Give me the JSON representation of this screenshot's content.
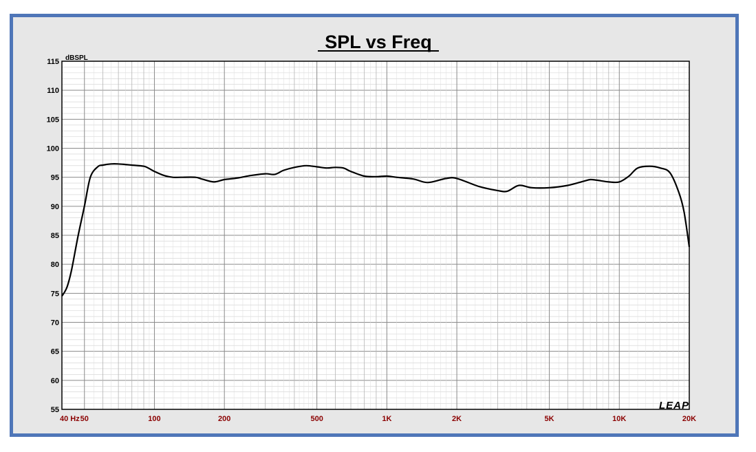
{
  "chart_data": {
    "type": "line",
    "title": "SPL vs Freq",
    "ylabel": "dBSPL",
    "xlabel": "",
    "x_scale": "log",
    "xlim": [
      40,
      20000
    ],
    "ylim": [
      55,
      115
    ],
    "grid": true,
    "y_ticks": [
      55,
      60,
      65,
      70,
      75,
      80,
      85,
      90,
      95,
      100,
      105,
      110,
      115
    ],
    "x_ticks": [
      {
        "value": 40,
        "label": "40  Hz"
      },
      {
        "value": 50,
        "label": "50"
      },
      {
        "value": 100,
        "label": "100"
      },
      {
        "value": 200,
        "label": "200"
      },
      {
        "value": 500,
        "label": "500"
      },
      {
        "value": 1000,
        "label": "1K"
      },
      {
        "value": 2000,
        "label": "2K"
      },
      {
        "value": 5000,
        "label": "5K"
      },
      {
        "value": 10000,
        "label": "10K"
      },
      {
        "value": 20000,
        "label": "20K"
      }
    ],
    "series": [
      {
        "color": "#000000",
        "x": [
          40,
          42,
          44,
          47,
          50,
          53,
          57,
          60,
          65,
          70,
          75,
          80,
          90,
          95,
          100,
          110,
          120,
          130,
          150,
          160,
          180,
          200,
          230,
          260,
          300,
          330,
          360,
          400,
          450,
          500,
          550,
          600,
          650,
          700,
          800,
          900,
          1000,
          1100,
          1300,
          1500,
          1800,
          2000,
          2500,
          3000,
          3300,
          3700,
          4200,
          5000,
          6000,
          7000,
          7500,
          8000,
          9000,
          10000,
          11000,
          12000,
          13500,
          15000,
          16500,
          18000,
          19000,
          20000
        ],
        "y": [
          74.5,
          76,
          79,
          85,
          90,
          95,
          96.8,
          97.1,
          97.3,
          97.3,
          97.2,
          97.1,
          96.9,
          96.5,
          96.0,
          95.3,
          95.0,
          95.0,
          95.0,
          94.7,
          94.2,
          94.6,
          94.9,
          95.3,
          95.6,
          95.5,
          96.2,
          96.7,
          97.0,
          96.8,
          96.6,
          96.7,
          96.6,
          96.0,
          95.2,
          95.1,
          95.2,
          95.0,
          94.7,
          94.1,
          94.8,
          94.8,
          93.4,
          92.7,
          92.6,
          93.6,
          93.2,
          93.2,
          93.6,
          94.3,
          94.6,
          94.5,
          94.2,
          94.2,
          95.2,
          96.6,
          96.9,
          96.6,
          95.8,
          92.5,
          89.0,
          83.0
        ]
      }
    ],
    "logo": "LEAP"
  }
}
